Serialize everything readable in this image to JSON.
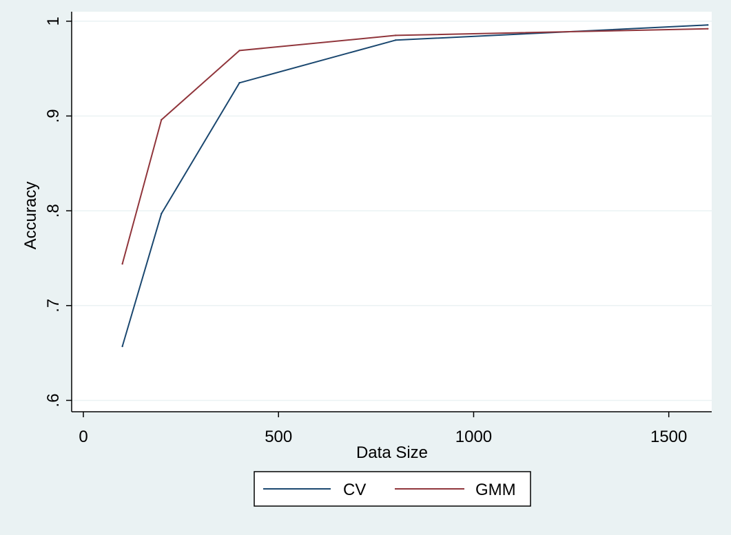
{
  "chart_data": {
    "type": "line",
    "title": "",
    "xlabel": "Data Size",
    "ylabel": "Accuracy",
    "xlim": [
      -30,
      1610
    ],
    "ylim": [
      0.588,
      1.01
    ],
    "xticks": [
      0,
      500,
      1000,
      1500
    ],
    "xtick_labels": [
      "0",
      "500",
      "1000",
      "1500"
    ],
    "yticks": [
      0.6,
      0.7,
      0.8,
      0.9,
      1.0
    ],
    "ytick_labels": [
      ".6",
      ".7",
      ".8",
      ".9",
      "1"
    ],
    "grid": "horizontal",
    "legend_position": "bottom",
    "series": [
      {
        "name": "CV",
        "color": "#1a476f",
        "x": [
          100,
          200,
          400,
          800,
          1600
        ],
        "y": [
          0.657,
          0.797,
          0.935,
          0.98,
          0.996
        ]
      },
      {
        "name": "GMM",
        "color": "#90353b",
        "x": [
          100,
          200,
          400,
          800,
          1600
        ],
        "y": [
          0.744,
          0.896,
          0.969,
          0.985,
          0.992
        ]
      }
    ],
    "colors": {
      "background": "#eaf2f3",
      "plot_area": "#ffffff",
      "grid": "#eaf2f3"
    }
  }
}
